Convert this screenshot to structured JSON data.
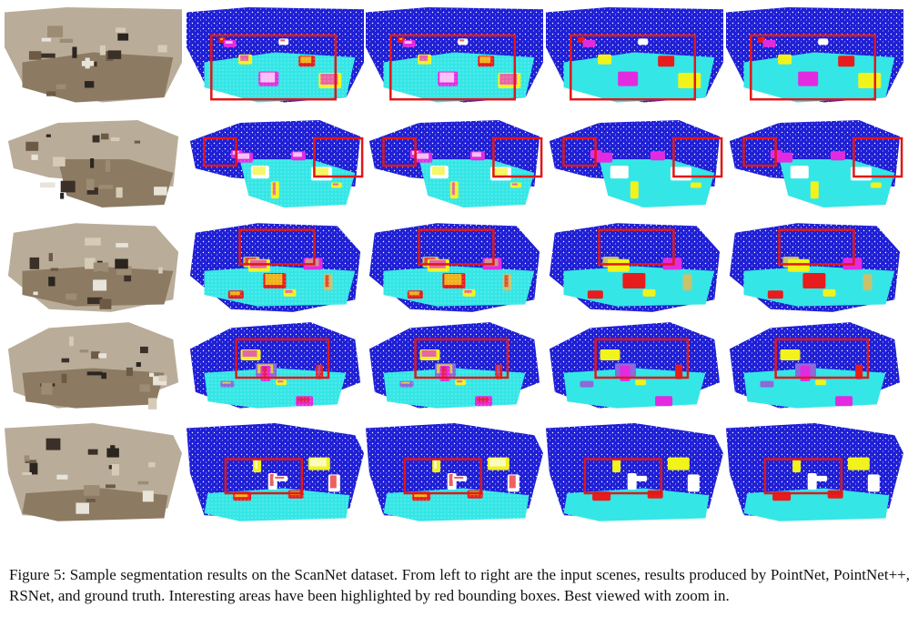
{
  "figure": {
    "rows": 5,
    "columns": [
      "input-scene",
      "pointnet",
      "pointnet++",
      "rsnet",
      "ground-truth"
    ],
    "colors": {
      "wall": "#1f1fd6",
      "floor": "#35e6e6",
      "highlight_box": "#e01818",
      "chair": "#e81c1c",
      "table": "#c7c26d",
      "sofa": "#e22be0",
      "object_yellow": "#f2f21c",
      "object_purple": "#8c6ad8",
      "object_white": "#ffffff",
      "photo_tone": "#8c7a62"
    }
  },
  "caption": {
    "text": "Figure 5: Sample segmentation results on the ScanNet dataset. From left to right are the input scenes, results produced by PointNet, PointNet++, RSNet, and ground truth. Interesting areas have been highlighted by red bounding boxes. Best viewed with zoom in."
  }
}
